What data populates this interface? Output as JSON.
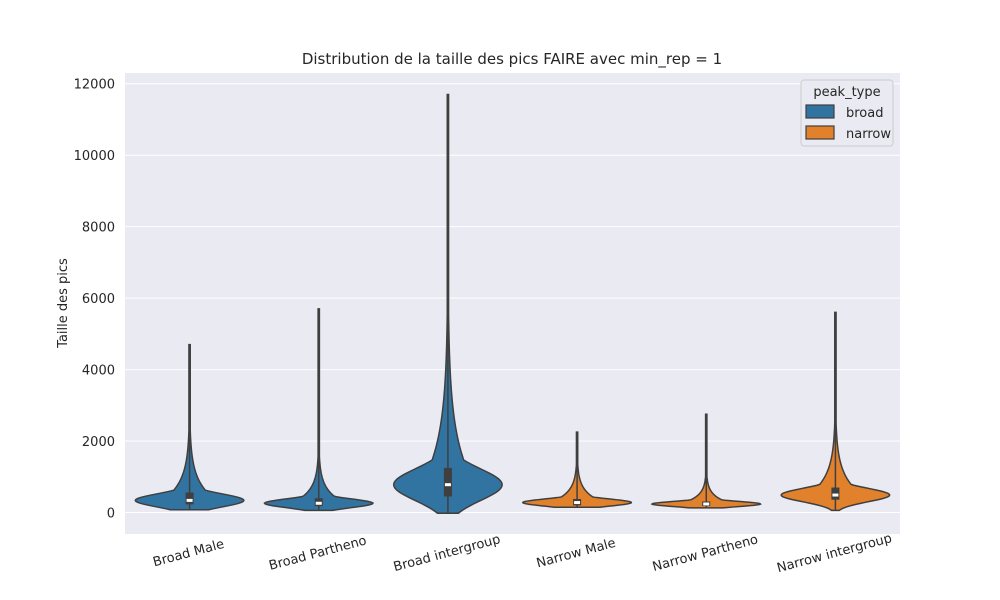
{
  "chart_data": {
    "type": "violin",
    "title": "Distribution de la taille des pics FAIRE avec min_rep = 1",
    "xlabel": "",
    "ylabel": "Taille des pics",
    "ylim": [
      -600,
      12300
    ],
    "yticks": [
      0,
      2000,
      4000,
      6000,
      8000,
      10000,
      12000
    ],
    "categories": [
      "Broad Male",
      "Broad Partheno",
      "Broad intergroup",
      "Narrow Male",
      "Narrow Partheno",
      "Narrow intergroup"
    ],
    "legend": {
      "title": "peak_type",
      "position": "top-right",
      "entries": [
        {
          "label": "broad",
          "color": "#3274a1"
        },
        {
          "label": "narrow",
          "color": "#e1812c"
        }
      ]
    },
    "violins": [
      {
        "category": "Broad Male",
        "peak_type": "broad",
        "min": 80,
        "max": 4700,
        "q1": 230,
        "median": 340,
        "q3": 560
      },
      {
        "category": "Broad Partheno",
        "peak_type": "broad",
        "min": 60,
        "max": 5700,
        "q1": 180,
        "median": 260,
        "q3": 400
      },
      {
        "category": "Broad intergroup",
        "peak_type": "broad",
        "min": -20,
        "max": 11700,
        "q1": 450,
        "median": 780,
        "q3": 1250
      },
      {
        "category": "Narrow Male",
        "peak_type": "narrow",
        "min": 150,
        "max": 2250,
        "q1": 200,
        "median": 280,
        "q3": 380
      },
      {
        "category": "Narrow Partheno",
        "peak_type": "narrow",
        "min": 130,
        "max": 2750,
        "q1": 180,
        "median": 240,
        "q3": 310
      },
      {
        "category": "Narrow intergroup",
        "peak_type": "narrow",
        "min": 60,
        "max": 5600,
        "q1": 360,
        "median": 490,
        "q3": 700
      }
    ]
  }
}
